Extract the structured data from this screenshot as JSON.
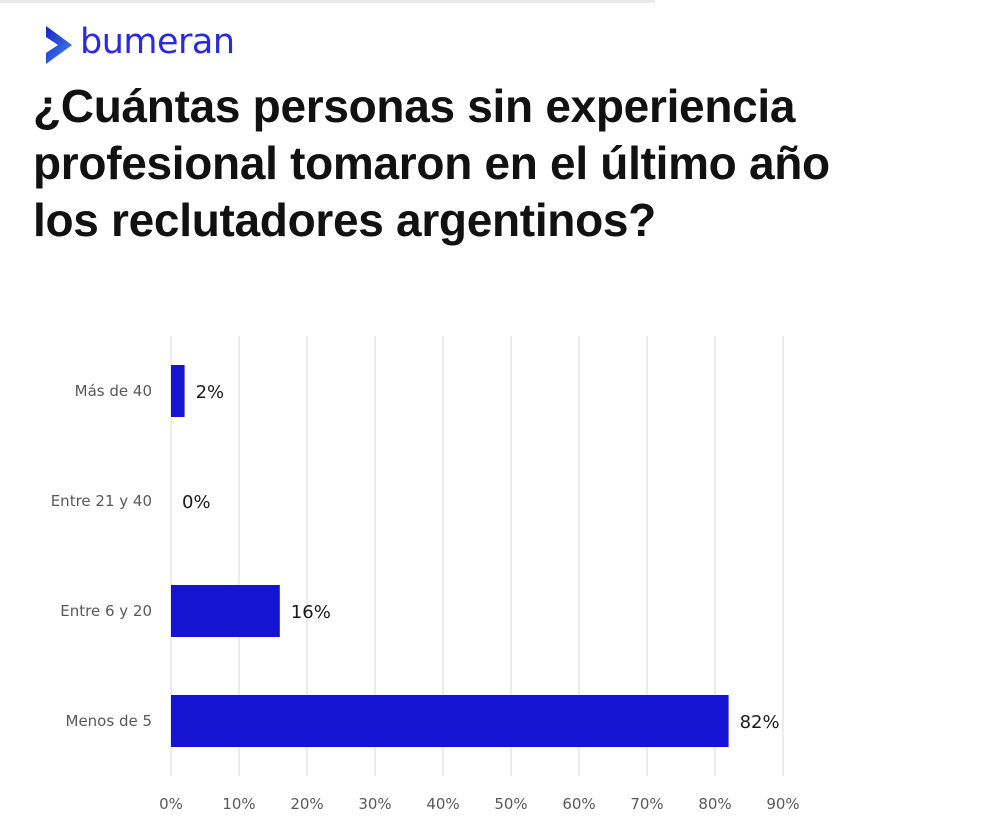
{
  "brand": {
    "name": "bumeran",
    "icon": "chevron-logo-icon",
    "color_dark": "#1f1fc8",
    "color_light": "#3b8df5",
    "text_color": "#2a2ae6"
  },
  "title": "¿Cuántas personas sin experiencia profesional tomaron en el último año los reclutadores argentinos?",
  "chart_data": {
    "type": "bar",
    "orientation": "horizontal",
    "categories": [
      "Más de 40",
      "Entre 21 y 40",
      "Entre 6 y 20",
      "Menos de 5"
    ],
    "values": [
      2,
      0,
      16,
      82
    ],
    "data_labels": [
      "2%",
      "0%",
      "16%",
      "82%"
    ],
    "x_ticks": [
      0,
      10,
      20,
      30,
      40,
      50,
      60,
      70,
      80,
      90
    ],
    "x_tick_labels": [
      "0%",
      "10%",
      "20%",
      "30%",
      "40%",
      "50%",
      "60%",
      "70%",
      "80%",
      "90%"
    ],
    "xlim": [
      0,
      90
    ],
    "grid": true,
    "bar_color": "#1414d2",
    "title": "",
    "xlabel": "",
    "ylabel": ""
  }
}
